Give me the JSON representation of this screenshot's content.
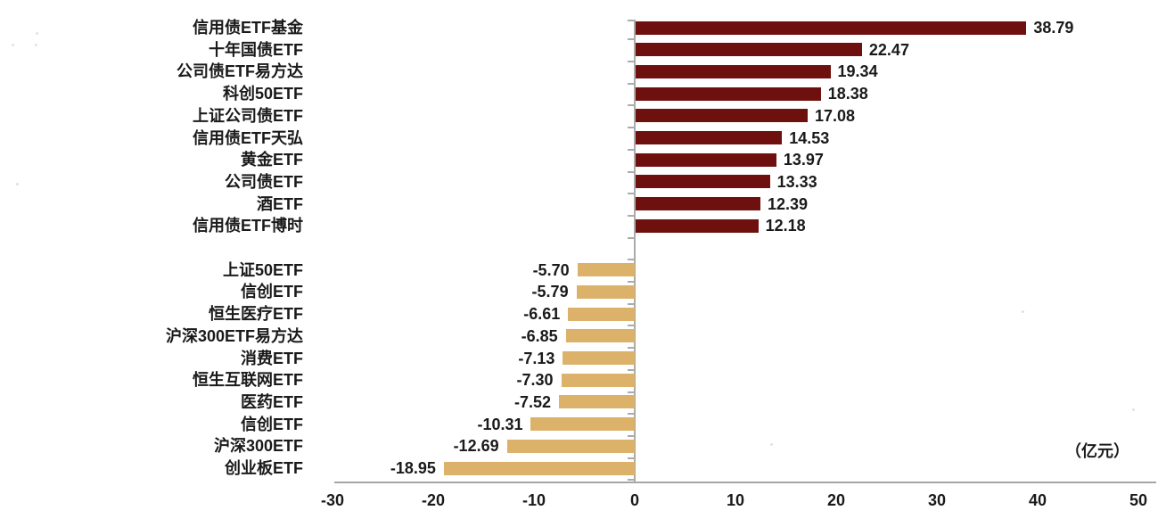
{
  "chart_data": {
    "type": "bar",
    "orientation": "horizontal",
    "title": "",
    "xlabel": "",
    "ylabel": "",
    "unit_label": "（亿元）",
    "xlim": [
      -30,
      52
    ],
    "x_ticks": [
      "-30",
      "-20",
      "-10",
      "0",
      "10",
      "20",
      "30",
      "40",
      "50"
    ],
    "x_tick_values": [
      -30,
      -20,
      -10,
      0,
      10,
      20,
      30,
      40,
      50
    ],
    "grid": false,
    "legend": "none",
    "colors": {
      "positive": "#6E100E",
      "negative": "#DCB169",
      "axis": "#a6a6a6",
      "text": "#1a1a1a"
    },
    "groups": [
      {
        "name": "positive",
        "color": "#6E100E",
        "bars": [
          {
            "label": "信用债ETF基金",
            "value": 38.79,
            "display": "38.79"
          },
          {
            "label": "十年国债ETF",
            "value": 22.47,
            "display": "22.47"
          },
          {
            "label": "公司债ETF易方达",
            "value": 19.34,
            "display": "19.34"
          },
          {
            "label": "科创50ETF",
            "value": 18.38,
            "display": "18.38"
          },
          {
            "label": "上证公司债ETF",
            "value": 17.08,
            "display": "17.08"
          },
          {
            "label": "信用债ETF天弘",
            "value": 14.53,
            "display": "14.53"
          },
          {
            "label": "黄金ETF",
            "value": 13.97,
            "display": "13.97"
          },
          {
            "label": "公司债ETF",
            "value": 13.33,
            "display": "13.33"
          },
          {
            "label": "酒ETF",
            "value": 12.39,
            "display": "12.39"
          },
          {
            "label": "信用债ETF博时",
            "value": 12.18,
            "display": "12.18"
          }
        ]
      },
      {
        "name": "negative",
        "color": "#DCB169",
        "bars": [
          {
            "label": "上证50ETF",
            "value": -5.7,
            "display": "-5.70"
          },
          {
            "label": "信创ETF",
            "value": -5.79,
            "display": "-5.79"
          },
          {
            "label": "恒生医疗ETF",
            "value": -6.61,
            "display": "-6.61"
          },
          {
            "label": "沪深300ETF易方达",
            "value": -6.85,
            "display": "-6.85"
          },
          {
            "label": "消费ETF",
            "value": -7.13,
            "display": "-7.13"
          },
          {
            "label": "恒生互联网ETF",
            "value": -7.3,
            "display": "-7.30"
          },
          {
            "label": "医药ETF",
            "value": -7.52,
            "display": "-7.52"
          },
          {
            "label": "信创ETF",
            "value": -10.31,
            "display": "-10.31"
          },
          {
            "label": "沪深300ETF",
            "value": -12.69,
            "display": "-12.69"
          },
          {
            "label": "创业板ETF",
            "value": -18.95,
            "display": "-18.95"
          }
        ]
      }
    ],
    "layout_note": "one blank category slot separates the positive and negative groups"
  }
}
